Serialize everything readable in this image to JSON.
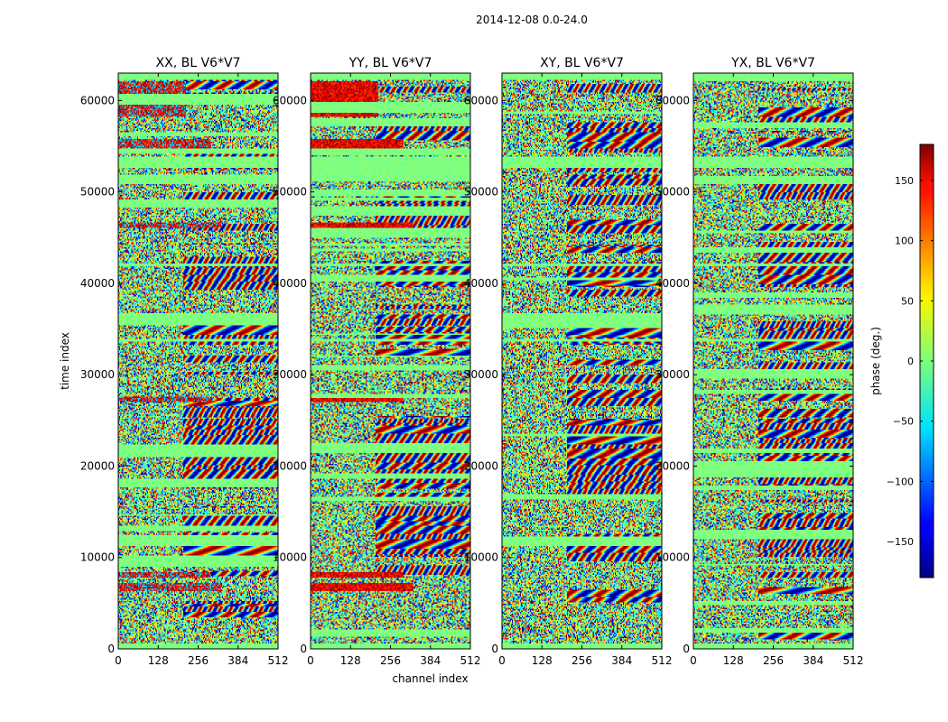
{
  "figure": {
    "suptitle": "2014-12-08 0.0-24.0"
  },
  "chart_data": [
    {
      "type": "heatmap",
      "title": "XX, BL V6*V7",
      "xlabel": "",
      "ylabel": "time index",
      "xlim": [
        0,
        512
      ],
      "ylim": [
        0,
        63000
      ],
      "xticks": [
        0,
        128,
        256,
        384,
        512
      ],
      "yticks": [
        0,
        10000,
        20000,
        30000,
        40000,
        50000,
        60000
      ],
      "colormap": "jet",
      "value_range": [
        -180,
        180
      ]
    },
    {
      "type": "heatmap",
      "title": "YY, BL V6*V7",
      "xlabel": "channel index",
      "ylabel": "",
      "xlim": [
        0,
        512
      ],
      "ylim": [
        0,
        63000
      ],
      "xticks": [
        0,
        128,
        256,
        384,
        512
      ],
      "yticks": [
        0,
        10000,
        20000,
        30000,
        40000,
        50000,
        60000
      ],
      "colormap": "jet",
      "value_range": [
        -180,
        180
      ]
    },
    {
      "type": "heatmap",
      "title": "XY, BL V6*V7",
      "xlabel": "",
      "ylabel": "",
      "xlim": [
        0,
        512
      ],
      "ylim": [
        0,
        63000
      ],
      "xticks": [
        0,
        128,
        256,
        384,
        512
      ],
      "yticks": [
        0,
        10000,
        20000,
        30000,
        40000,
        50000,
        60000
      ],
      "colormap": "jet",
      "value_range": [
        -180,
        180
      ]
    },
    {
      "type": "heatmap",
      "title": "YX, BL V6*V7",
      "xlabel": "",
      "ylabel": "",
      "xlim": [
        0,
        512
      ],
      "ylim": [
        0,
        63000
      ],
      "xticks": [
        0,
        128,
        256,
        384,
        512
      ],
      "yticks": [
        0,
        10000,
        20000,
        30000,
        40000,
        50000,
        60000
      ],
      "colormap": "jet",
      "value_range": [
        -180,
        180
      ]
    }
  ],
  "colorbar": {
    "label": "phase (deg.)",
    "range": [
      -180,
      180
    ],
    "ticks": [
      150,
      100,
      50,
      0,
      -50,
      -100,
      -150
    ],
    "tick_labels": [
      "150",
      "100",
      "50",
      "0",
      "−50",
      "−100",
      "−150"
    ],
    "colormap": "jet"
  }
}
